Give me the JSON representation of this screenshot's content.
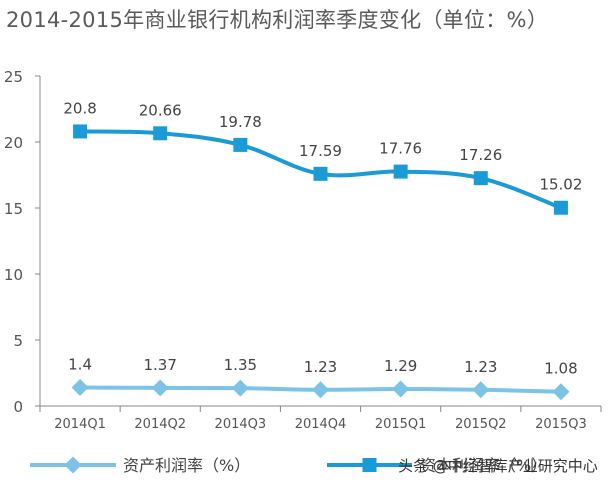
{
  "chart_data": {
    "type": "line",
    "title": "2014-2015年商业银行机构利润率季度变化（单位：%）",
    "categories": [
      "2014Q1",
      "2014Q2",
      "2014Q3",
      "2014Q4",
      "2015Q1",
      "2015Q2",
      "2015Q3"
    ],
    "ylim": [
      0,
      25
    ],
    "yticks": [
      "0",
      "5",
      "10",
      "15",
      "20",
      "25"
    ],
    "grid": false,
    "legend_position": "bottom",
    "series": [
      {
        "name": "资产利润率（%）",
        "marker": "diamond",
        "color": "#7dc3e6",
        "values": [
          1.4,
          1.37,
          1.35,
          1.23,
          1.29,
          1.23,
          1.08
        ],
        "labels": [
          "1.4",
          "1.37",
          "1.35",
          "1.23",
          "1.29",
          "1.23",
          "1.08"
        ]
      },
      {
        "name": "资本利润率（%）",
        "marker": "square",
        "color": "#1a9ad6",
        "values": [
          20.8,
          20.66,
          19.78,
          17.59,
          17.76,
          17.26,
          15.02
        ],
        "labels": [
          "20.8",
          "20.66",
          "19.78",
          "17.59",
          "17.76",
          "17.26",
          "15.02"
        ]
      }
    ]
  },
  "watermark": "头条 @中经智库产业研究中心"
}
